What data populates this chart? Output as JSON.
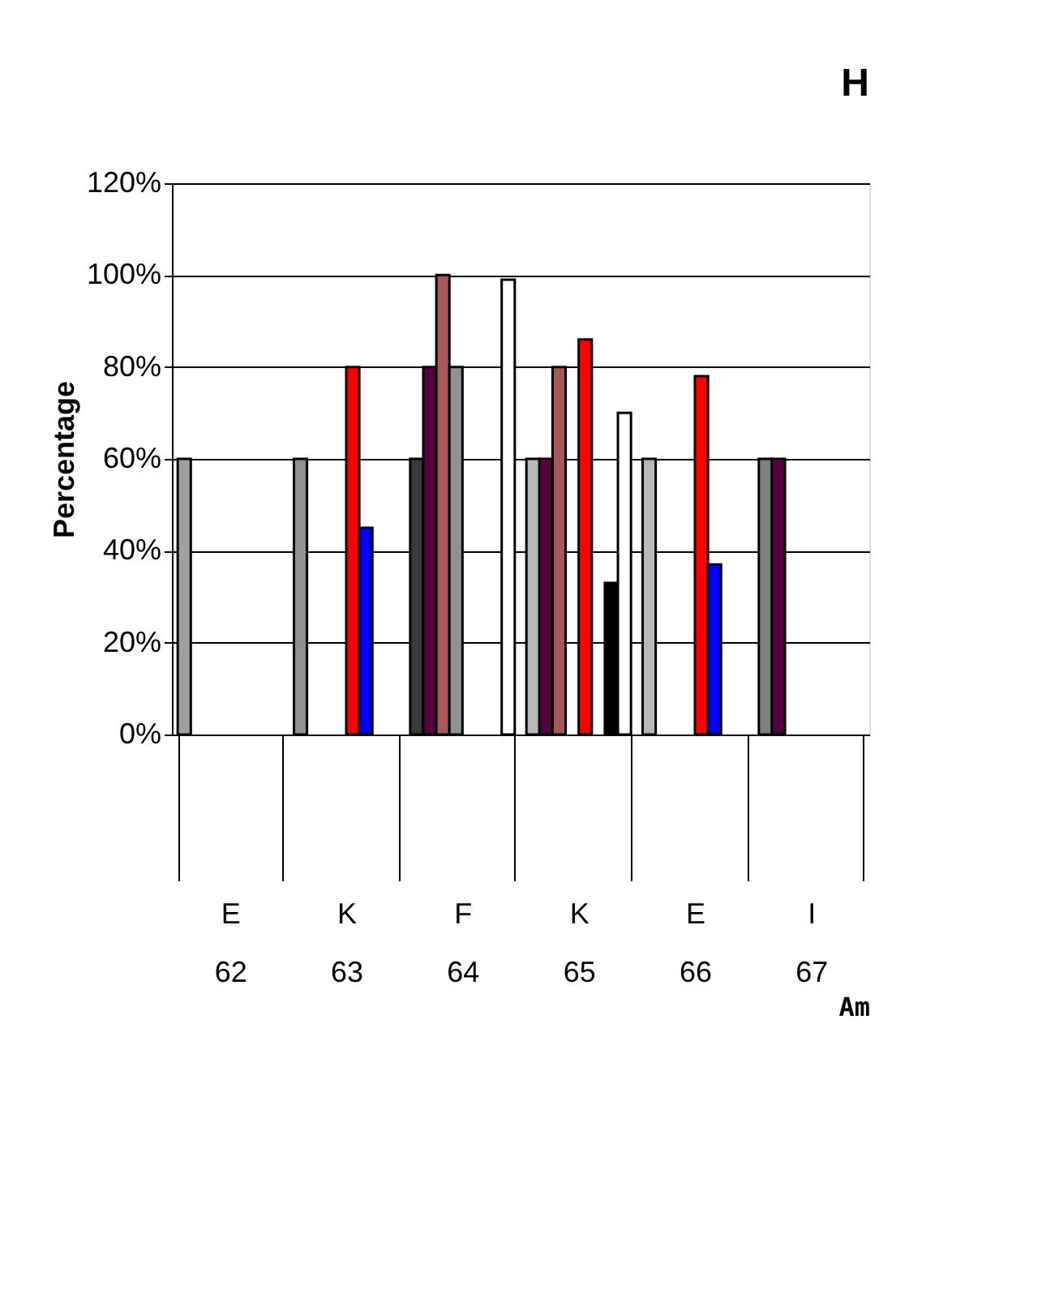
{
  "chart_data": {
    "type": "bar",
    "title": "H",
    "ylabel": "Percentage",
    "xlabel": "Am",
    "categories": [
      "E\n62",
      "K\n63",
      "F\n64",
      "K\n65",
      "E\n66",
      "I\n67"
    ],
    "series": [
      {
        "colors": [
          "#a0a0a0",
          "#909090",
          "#3a3a3a",
          "#b8b8b8",
          "#b8b8b8",
          "#808080"
        ],
        "values": [
          60,
          60,
          60,
          60,
          60,
          60
        ]
      },
      {
        "color": "#550040",
        "values": [
          null,
          null,
          80,
          60,
          null,
          60
        ]
      },
      {
        "color": "#a85858",
        "values": [
          null,
          null,
          100,
          80,
          null,
          null
        ]
      },
      {
        "color": "#909090",
        "values": [
          null,
          null,
          80,
          null,
          null,
          null
        ]
      },
      {
        "color": "#ff0000",
        "values": [
          null,
          80,
          null,
          86,
          78,
          null
        ]
      },
      {
        "color": "#0000ff",
        "values": [
          null,
          45,
          null,
          null,
          37,
          null
        ]
      },
      {
        "color": "#000000",
        "values": [
          null,
          null,
          null,
          33,
          null,
          null
        ]
      },
      {
        "color": "#ffffff",
        "values": [
          null,
          null,
          99,
          70,
          null,
          null
        ]
      }
    ],
    "ylim": [
      0,
      120
    ],
    "yticks": [
      {
        "value": 0,
        "label": "0%"
      },
      {
        "value": 20,
        "label": "20%"
      },
      {
        "value": 40,
        "label": "40%"
      },
      {
        "value": 60,
        "label": "60%"
      },
      {
        "value": 80,
        "label": "80%"
      },
      {
        "value": 100,
        "label": "100%"
      },
      {
        "value": 120,
        "label": "120%"
      }
    ],
    "grid": "y"
  }
}
